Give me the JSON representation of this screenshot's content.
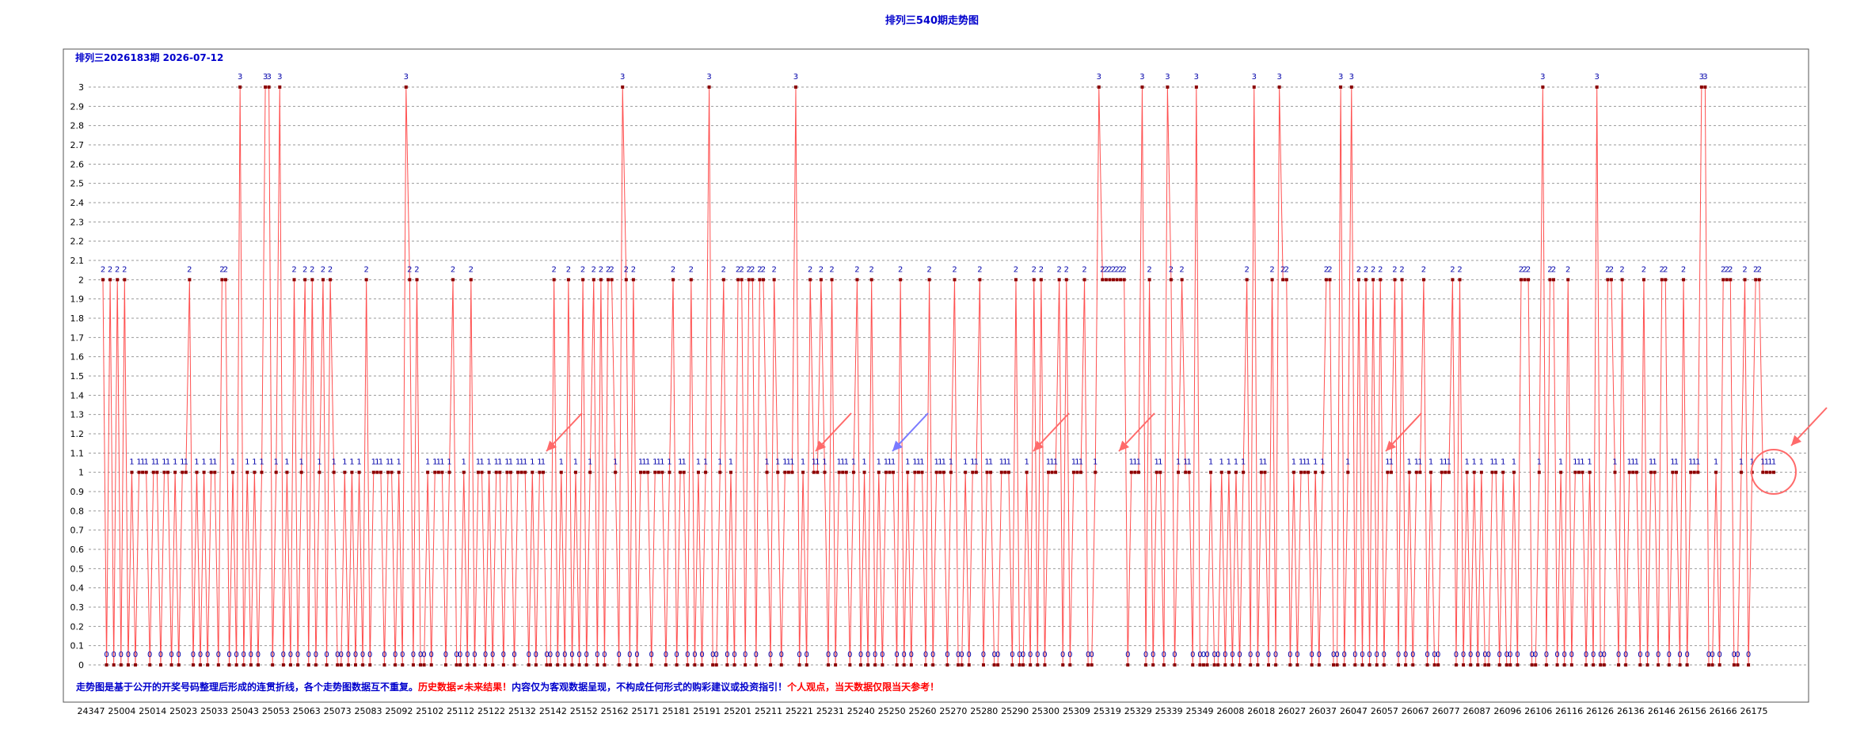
{
  "page": {
    "title": "排列三540期走势图",
    "subtitle": "排列三2026183期  2026-07-12"
  },
  "footnote": [
    {
      "text": "走势图是基于公开的开奖号码整理后形成的连贯折线，各个走势图数据互不重复。",
      "color": "#0000cc"
    },
    {
      "text": "历史数据≠未来结果！",
      "color": "#ff0000"
    },
    {
      "text": "内容仅为客观数据呈现，不构成任何形式的购彩建议或投资指引！",
      "color": "#0000cc"
    },
    {
      "text": "个人观点，当天数据仅限当天参考！",
      "color": "#ff0000"
    }
  ],
  "colors": {
    "line": "#ff5050",
    "marker": "#8b0000",
    "value_label": "#0000aa",
    "title": "#0000cc",
    "warning": "#ff0000",
    "arrow_red": "#ff6a6a",
    "arrow_blue": "#7a7aff",
    "grid": "#9a9a9a"
  },
  "annotations": {
    "red_arrows": 7,
    "blue_arrows": 1,
    "circle_around_last_points": true
  },
  "chart_data": {
    "type": "line",
    "title": "排列三540期走势图",
    "xlabel": "",
    "ylabel": "",
    "ylim": [
      0,
      3
    ],
    "y_ticks": [
      "0",
      "0.1",
      "0.2",
      "0.3",
      "0.4",
      "0.5",
      "0.6",
      "0.7",
      "0.8",
      "0.9",
      "1",
      "1.1",
      "1.2",
      "1.3",
      "1.4",
      "1.5",
      "1.6",
      "1.7",
      "1.8",
      "1.9",
      "2",
      "2.1",
      "2.2",
      "2.3",
      "2.4",
      "2.5",
      "2.6",
      "2.7",
      "2.8",
      "2.9",
      "3"
    ],
    "x_tick_labels": [
      "24347",
      "25004",
      "25014",
      "25023",
      "25033",
      "25043",
      "25053",
      "25063",
      "25073",
      "25083",
      "25092",
      "25102",
      "25112",
      "25122",
      "25132",
      "25142",
      "25152",
      "25162",
      "25171",
      "25181",
      "25191",
      "25201",
      "25211",
      "25221",
      "25231",
      "25240",
      "25250",
      "25260",
      "25270",
      "25280",
      "25290",
      "25300",
      "25309",
      "25319",
      "25329",
      "25339",
      "25349",
      "26008",
      "26018",
      "26027",
      "26037",
      "26047",
      "26057",
      "26067",
      "26077",
      "26087",
      "26096",
      "26106",
      "26116",
      "26126",
      "26136",
      "26146",
      "26156",
      "26166",
      "26175"
    ],
    "grid": true,
    "point_labels": true,
    "series": [
      {
        "values": "2,0,2,0,2,0,2,0,1,0,1,1,1,0,1,1,0,1,1,0,1,0,1,1,2,0,1,0,1,0,1,1,0,2,2,0,1,0,3,0,1,0,1,0,1,3,3,0,1,3,0,1,0,2,0,1,2,0,2,0,1,2,0,2,1,0,0,1,0,1,0,1,0,2,0,1,1,1,0,1,1,0,1,0,3,2,0,2,0,0,1,0,1,1,1,0,1,2,0,0,1,0,2,0,1,1,0,1,0,1,1,0,1,1,0,1,1,1,0,1,0,1,1,0,0,2,0,1,0,2,0,1,0,2,0,1,2,0,2,0,2,2,1,0,3,2,0,2,0,1,1,1,0,1,1,1,0,1,2,0,1,1,0,2,0,1,0,1,3,0,0,1,2,0,1,0,2,2,0,2,2,0,2,2,1,0,2,1,0,1,1,1,3,0,1,0,2,1,1,2,1,0,2,0,1,1,1,0,1,2,0,1,0,2,0,1,0,1,1,1,0,2,0,1,0,1,1,1,0,2,0,1,1,1,0,1,2,0,0,1,0,1,1,2,0,1,1,0,0,1,1,1,0,2,0,0,1,0,2,0,2,0,1,1,1,2,0,2,0,1,1,1,2,0,0,1,3,2,2,2,2,2,2,2,0,1,1,1,3,0,2,0,1,1,0,3,2,0,1,2,1,1,0,3,0,0,0,1,0,0,1,0,1,0,1,0,1,2,0,3,0,1,1,0,2,0,3,2,2,0,1,0,1,1,1,0,1,0,1,2,2,0,0,3,0,1,3,0,2,0,2,0,2,0,2,0,1,1,2,0,2,0,1,0,1,1,2,0,1,0,0,1,1,1,2,0,2,0,1,0,1,0,1,0,0,1,1,0,1,0,0,1,0,2,2,2,0,0,1,3,0,2,2,0,1,0,2,0,1,1,1,0,1,0,3,0,0,2,2,1,0,2,0,1,1,1,0,2,0,1,1,0,2,2,0,1,1,0,2,0,1,1,1,3,3,0,0,1,0,2,2,2,0,0,1,2,0,1,2,2,1,1,1,1"
      }
    ]
  }
}
